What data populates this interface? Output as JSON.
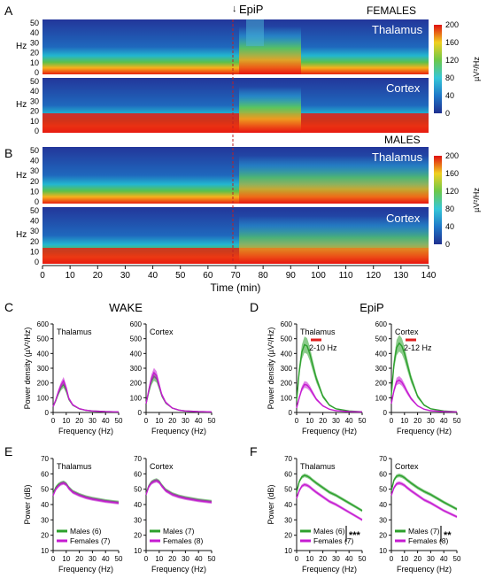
{
  "spectrograms": {
    "panel_labels": [
      "A",
      "B"
    ],
    "event_label": "EpiP",
    "group_titles": [
      "FEMALES",
      "MALES"
    ],
    "region_titles": [
      "Thalamus",
      "Cortex"
    ],
    "hz_label": "Hz",
    "y_ticks": [
      "50",
      "40",
      "30",
      "20",
      "10",
      "0"
    ],
    "colorbar_ticks": [
      "200",
      "160",
      "120",
      "80",
      "40",
      "0"
    ],
    "colorbar_label": "µV²/Hz",
    "x_axis_label": "Time (min)",
    "x_ticks": [
      "0",
      "10",
      "20",
      "30",
      "40",
      "50",
      "60",
      "70",
      "80",
      "90",
      "100",
      "110",
      "120",
      "130",
      "140"
    ]
  },
  "psd": {
    "panel_labels": [
      "C",
      "D"
    ],
    "section_titles": [
      "WAKE",
      "EpiP"
    ],
    "region_titles": [
      "Thalamus",
      "Cortex"
    ],
    "y_axis_label": "Power density (µV²/Hz)",
    "x_axis_label": "Frequency (Hz)",
    "y_ticks": [
      "600",
      "500",
      "400",
      "300",
      "200",
      "100",
      "0"
    ],
    "x_ticks": [
      "0",
      "10",
      "20",
      "30",
      "40",
      "50"
    ],
    "band_labels": [
      "2-10 Hz",
      "2-12 Hz"
    ]
  },
  "db": {
    "panel_labels": [
      "E",
      "F"
    ],
    "region_titles": [
      "Thalamus",
      "Cortex"
    ],
    "y_axis_label": "Power (dB)",
    "x_axis_label": "Frequency (Hz)",
    "y_ticks": [
      "70",
      "60",
      "50",
      "40",
      "30",
      "20",
      "10"
    ],
    "x_ticks": [
      "0",
      "10",
      "20",
      "30",
      "40",
      "50"
    ],
    "legends": [
      [
        "Males (6)",
        "Females (7)"
      ],
      [
        "Males (7)",
        "Females (8)"
      ],
      [
        "Males (6)",
        "Females (7)"
      ],
      [
        "Males (7)",
        "Females (8)"
      ]
    ],
    "significance": [
      "***",
      "**"
    ]
  },
  "colors": {
    "males": "#2ca02c",
    "females": "#c51bd1",
    "marker": "#e02020"
  },
  "chart_data": [
    {
      "type": "line",
      "title": "WAKE Thalamus",
      "xlabel": "Frequency (Hz)",
      "ylabel": "Power density (µV²/Hz)",
      "x": [
        0,
        2,
        4,
        6,
        8,
        10,
        12,
        15,
        20,
        25,
        30,
        40,
        50
      ],
      "series": [
        {
          "name": "Males (6)",
          "values": [
            40,
            80,
            130,
            170,
            190,
            150,
            90,
            50,
            25,
            15,
            10,
            6,
            4
          ]
        },
        {
          "name": "Females (7)",
          "values": [
            40,
            85,
            140,
            185,
            215,
            165,
            95,
            52,
            26,
            15,
            10,
            6,
            4
          ]
        }
      ],
      "ylim": [
        0,
        600
      ]
    },
    {
      "type": "line",
      "title": "WAKE Cortex",
      "xlabel": "Frequency (Hz)",
      "x": [
        0,
        2,
        4,
        6,
        8,
        10,
        12,
        15,
        20,
        25,
        30,
        40,
        50
      ],
      "series": [
        {
          "name": "Males (7)",
          "values": [
            60,
            140,
            210,
            245,
            230,
            175,
            115,
            65,
            30,
            16,
            10,
            6,
            4
          ]
        },
        {
          "name": "Females (8)",
          "values": [
            60,
            150,
            230,
            270,
            250,
            185,
            120,
            68,
            30,
            16,
            10,
            6,
            4
          ]
        }
      ],
      "ylim": [
        0,
        600
      ]
    },
    {
      "type": "line",
      "title": "EpiP Thalamus",
      "xlabel": "Frequency (Hz)",
      "ylabel": "Power density (µV²/Hz)",
      "x": [
        0,
        2,
        4,
        6,
        8,
        10,
        12,
        15,
        20,
        25,
        30,
        40,
        50
      ],
      "series": [
        {
          "name": "Males (6)",
          "values": [
            80,
            280,
            410,
            460,
            450,
            400,
            330,
            230,
            110,
            50,
            25,
            10,
            5
          ]
        },
        {
          "name": "Females (7)",
          "values": [
            30,
            100,
            160,
            190,
            185,
            165,
            135,
            90,
            45,
            22,
            12,
            6,
            4
          ]
        }
      ],
      "ylim": [
        0,
        600
      ]
    },
    {
      "type": "line",
      "title": "EpiP Cortex",
      "xlabel": "Frequency (Hz)",
      "x": [
        0,
        2,
        4,
        6,
        8,
        10,
        12,
        15,
        20,
        25,
        30,
        40,
        50
      ],
      "series": [
        {
          "name": "Males (7)",
          "values": [
            120,
            330,
            440,
            470,
            450,
            400,
            330,
            230,
            110,
            50,
            25,
            10,
            5
          ]
        },
        {
          "name": "Females (8)",
          "values": [
            60,
            150,
            210,
            220,
            205,
            175,
            140,
            95,
            45,
            22,
            12,
            6,
            4
          ]
        }
      ],
      "ylim": [
        0,
        600
      ]
    },
    {
      "type": "line",
      "title": "WAKE Thalamus",
      "xlabel": "Frequency (Hz)",
      "ylabel": "Power (dB)",
      "x": [
        0,
        2,
        4,
        6,
        8,
        10,
        12,
        15,
        20,
        25,
        30,
        40,
        50
      ],
      "series": [
        {
          "name": "Males (6)",
          "values": [
            47,
            51,
            53,
            54,
            54.5,
            53.5,
            51,
            48.5,
            46.5,
            45,
            44,
            42.5,
            41.5
          ]
        },
        {
          "name": "Females (7)",
          "values": [
            46,
            50,
            52,
            53.5,
            54,
            53,
            50.5,
            48,
            46,
            44.5,
            43.5,
            42,
            41
          ]
        }
      ],
      "ylim": [
        10,
        70
      ]
    },
    {
      "type": "line",
      "title": "WAKE Cortex",
      "xlabel": "Frequency (Hz)",
      "x": [
        0,
        2,
        4,
        6,
        8,
        10,
        12,
        15,
        20,
        25,
        30,
        40,
        50
      ],
      "series": [
        {
          "name": "Males (7)",
          "values": [
            47,
            52,
            54.5,
            55.5,
            56,
            55,
            52.5,
            49.5,
            47,
            45.5,
            44.5,
            43,
            42
          ]
        },
        {
          "name": "Females (8)",
          "values": [
            46.5,
            51.5,
            54,
            55,
            55.5,
            54.5,
            52,
            49,
            46.5,
            45,
            44,
            42.5,
            41.5
          ]
        }
      ],
      "ylim": [
        10,
        70
      ]
    },
    {
      "type": "line",
      "title": "EpiP Thalamus",
      "xlabel": "Frequency (Hz)",
      "ylabel": "Power (dB)",
      "x": [
        0,
        2,
        4,
        6,
        8,
        10,
        12,
        15,
        20,
        25,
        30,
        40,
        50
      ],
      "series": [
        {
          "name": "Males (6)",
          "values": [
            48,
            55,
            58,
            59,
            58.5,
            57.5,
            56,
            54,
            51,
            48,
            46,
            41,
            36
          ]
        },
        {
          "name": "Females (7)",
          "values": [
            44,
            49,
            52,
            53,
            52.5,
            51.5,
            50,
            48,
            45,
            42,
            40,
            35,
            30
          ]
        }
      ],
      "ylim": [
        10,
        70
      ]
    },
    {
      "type": "line",
      "title": "EpiP Cortex",
      "xlabel": "Frequency (Hz)",
      "x": [
        0,
        2,
        4,
        6,
        8,
        10,
        12,
        15,
        20,
        25,
        30,
        40,
        50
      ],
      "series": [
        {
          "name": "Males (7)",
          "values": [
            49,
            56,
            58.5,
            59,
            58.5,
            57.5,
            56,
            54,
            51,
            48.5,
            46.5,
            41.5,
            37
          ]
        },
        {
          "name": "Females (8)",
          "values": [
            46,
            51,
            53.5,
            54,
            53.5,
            52.5,
            51,
            49,
            46,
            43,
            41,
            36,
            32
          ]
        }
      ],
      "ylim": [
        10,
        70
      ]
    }
  ]
}
